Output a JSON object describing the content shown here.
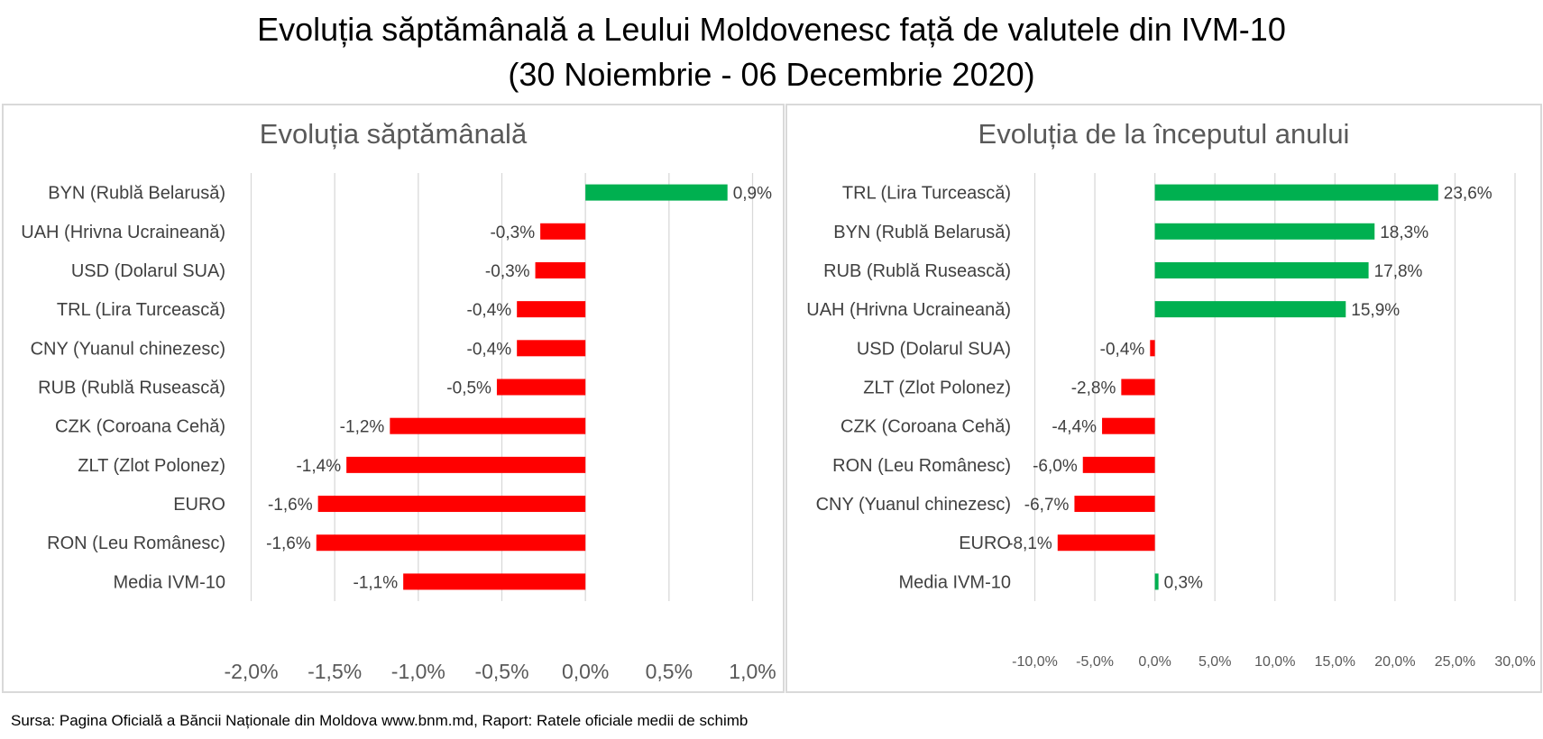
{
  "header": {
    "title_line1": "Evoluția săptămânală a Leului Moldovenesc față de valutele din IVM-10",
    "title_line2": "(30 Noiembrie - 06 Decembrie 2020)"
  },
  "footer": {
    "source": "Sursa: Pagina Oficială a Băncii Naționale din Moldova www.bnm.md, Raport: Ratele oficiale medii de schimb"
  },
  "colors": {
    "positive": "#00b050",
    "negative": "#ff0000",
    "grid": "#d9d9d9"
  },
  "chart_data": [
    {
      "type": "bar",
      "orientation": "horizontal",
      "title": "Evoluția săptămânală",
      "categories": [
        "BYN (Rublă Belarusă)",
        "UAH (Hrivna Ucraineană)",
        "USD (Dolarul SUA)",
        "TRL (Lira Turcească)",
        "CNY (Yuanul chinezesc)",
        "RUB (Rublă Rusească)",
        "CZK (Coroana Cehă)",
        "ZLT (Zlot Polonez)",
        "EURO",
        "RON (Leu Românesc)",
        "Media IVM-10"
      ],
      "values": [
        0.85,
        -0.27,
        -0.3,
        -0.41,
        -0.41,
        -0.53,
        -1.17,
        -1.43,
        -1.6,
        -1.61,
        -1.09
      ],
      "value_labels": [
        "0,9%",
        "-0,3%",
        "-0,3%",
        "-0,4%",
        "-0,4%",
        "-0,5%",
        "-1,2%",
        "-1,4%",
        "-1,6%",
        "-1,6%",
        "-1,1%"
      ],
      "xlim": [
        -2.0,
        1.0
      ],
      "xticks": [
        -2.0,
        -1.5,
        -1.0,
        -0.5,
        0.0,
        0.5,
        1.0
      ],
      "xtick_labels": [
        "-2,0%",
        "-1,5%",
        "-1,0%",
        "-0,5%",
        "0,0%",
        "0,5%",
        "1,0%"
      ],
      "xlabel": "",
      "ylabel": "",
      "grid": "vertical",
      "legend": "none"
    },
    {
      "type": "bar",
      "orientation": "horizontal",
      "title": "Evoluția de la începutul anului",
      "categories": [
        "TRL (Lira Turcească)",
        "BYN (Rublă Belarusă)",
        "RUB (Rublă Rusească)",
        "UAH (Hrivna Ucraineană)",
        "USD (Dolarul SUA)",
        "ZLT (Zlot Polonez)",
        "CZK (Coroana Cehă)",
        "RON (Leu Românesc)",
        "CNY (Yuanul chinezesc)",
        "EURO",
        "Media IVM-10"
      ],
      "values": [
        23.6,
        18.3,
        17.8,
        15.9,
        -0.4,
        -2.8,
        -4.4,
        -6.0,
        -6.7,
        -8.1,
        0.3
      ],
      "value_labels": [
        "23,6%",
        "18,3%",
        "17,8%",
        "15,9%",
        "-0,4%",
        "-2,8%",
        "-4,4%",
        "-6,0%",
        "-6,7%",
        "-8,1%",
        "0,3%"
      ],
      "xlim": [
        -10.0,
        30.0
      ],
      "xticks": [
        -10,
        -5,
        0,
        5,
        10,
        15,
        20,
        25,
        30
      ],
      "xtick_labels": [
        "-10,0%",
        "-5,0%",
        "0,0%",
        "5,0%",
        "10,0%",
        "15,0%",
        "20,0%",
        "25,0%",
        "30,0%"
      ],
      "xlabel": "",
      "ylabel": "",
      "grid": "vertical",
      "legend": "none"
    }
  ]
}
